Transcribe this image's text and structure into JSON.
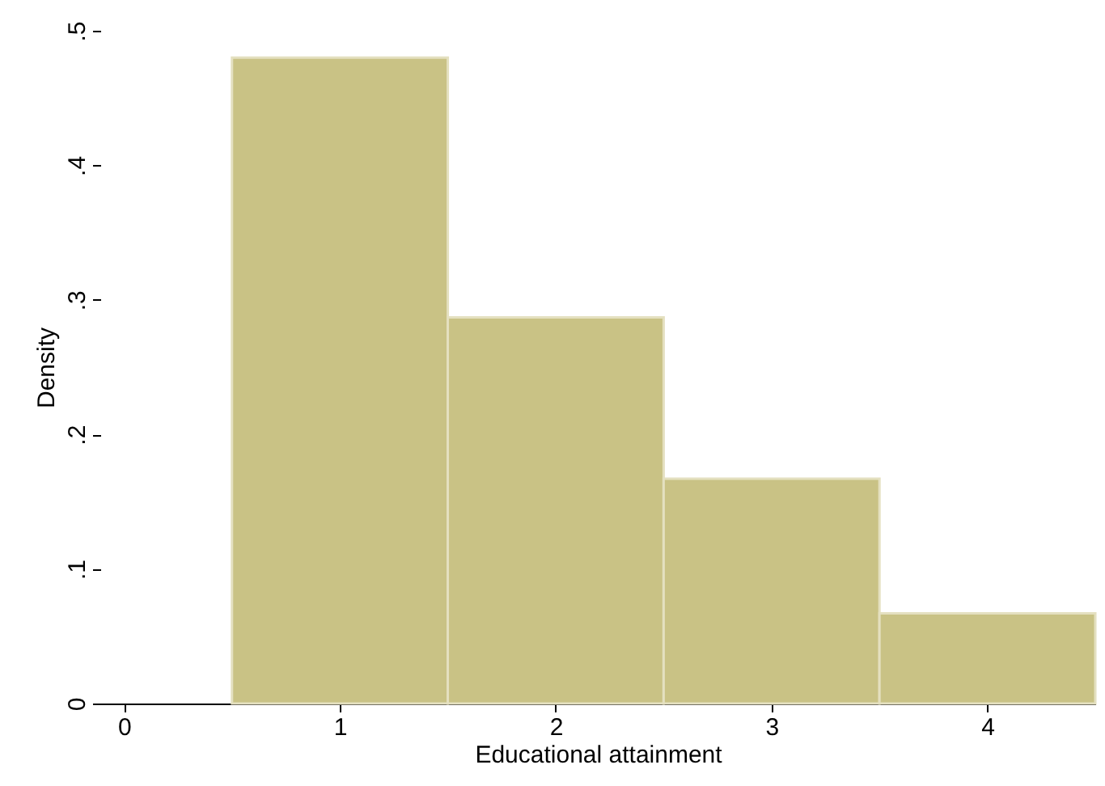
{
  "chart_data": {
    "type": "histogram",
    "xlabel": "Educational attainment",
    "ylabel": "Density",
    "bins": [
      0.5,
      1.5,
      2.5,
      3.5,
      4.5
    ],
    "values": [
      0.48,
      0.287,
      0.167,
      0.067
    ],
    "color": "#c9c285",
    "xlim": [
      -0.11,
      4.5
    ],
    "xticks": [
      0,
      1,
      2,
      3,
      4
    ],
    "ylim": [
      0,
      0.5
    ],
    "yticks": [
      {
        "value": 0,
        "label": "0"
      },
      {
        "value": 0.1,
        "label": ".1"
      },
      {
        "value": 0.2,
        "label": ".2"
      },
      {
        "value": 0.3,
        "label": ".3"
      },
      {
        "value": 0.4,
        "label": ".4"
      },
      {
        "value": 0.5,
        "label": ".5"
      }
    ],
    "grid": false
  }
}
